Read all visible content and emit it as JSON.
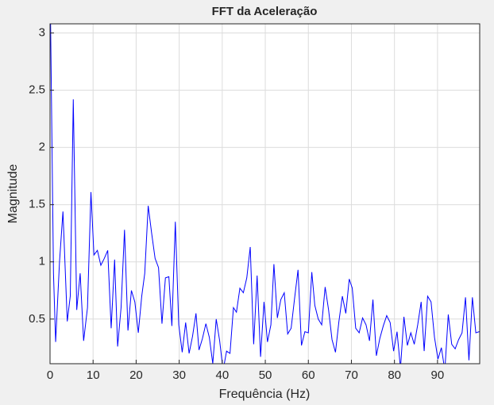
{
  "chart_data": {
    "type": "line",
    "title": "FFT da Aceleração",
    "xlabel": "Frequência (Hz)",
    "ylabel": "Magnitude",
    "x": [
      0,
      0.8,
      1.3,
      2.2,
      3,
      4,
      4.7,
      5.4,
      6.2,
      7,
      7.8,
      8.7,
      9.5,
      10.2,
      11,
      11.8,
      12.6,
      13.4,
      14.2,
      15,
      15.7,
      16.5,
      17.3,
      18.1,
      18.9,
      19.7,
      20.5,
      21.3,
      22,
      22.8,
      23.6,
      24.4,
      25.2,
      26,
      26.8,
      27.6,
      28.3,
      29.1,
      29.9,
      30.7,
      31.5,
      32.3,
      33.1,
      33.9,
      34.6,
      35.4,
      36.2,
      37,
      37.8,
      38.6,
      39.4,
      40.2,
      41,
      41.8,
      42.6,
      43.3,
      44.1,
      44.9,
      45.7,
      46.5,
      47.3,
      48.1,
      48.9,
      49.7,
      50.5,
      51.3,
      52,
      52.8,
      53.6,
      54.4,
      55.2,
      56,
      56.8,
      57.6,
      58.4,
      59.2,
      60,
      60.8,
      61.5,
      62.3,
      63.1,
      63.9,
      64.7,
      65.5,
      66.3,
      67.1,
      67.9,
      68.7,
      69.5,
      70.2,
      71,
      71.8,
      72.6,
      73.4,
      74.2,
      75,
      75.8,
      76.6,
      77.4,
      78.2,
      79,
      79.8,
      80.6,
      81.4,
      82.2,
      83,
      83.8,
      84.6,
      85.4,
      86.2,
      86.9,
      87.7,
      88.5,
      89.3,
      90.1,
      90.9,
      91.7,
      92.5,
      93.3,
      94.1,
      94.9,
      95.7,
      96.5,
      97.3,
      98.1,
      98.9,
      99.7
    ],
    "series": [
      {
        "color": "#0000ff",
        "values": [
          3.5,
          0.9,
          0.3,
          1.0,
          1.44,
          0.48,
          0.7,
          2.42,
          0.58,
          0.9,
          0.31,
          0.6,
          1.61,
          1.06,
          1.1,
          0.97,
          1.03,
          1.1,
          0.42,
          1.02,
          0.26,
          0.6,
          1.28,
          0.4,
          0.75,
          0.65,
          0.38,
          0.7,
          0.9,
          1.49,
          1.25,
          1.03,
          0.95,
          0.46,
          0.86,
          0.87,
          0.44,
          1.35,
          0.45,
          0.21,
          0.47,
          0.2,
          0.35,
          0.55,
          0.23,
          0.33,
          0.46,
          0.34,
          0.11,
          0.5,
          0.31,
          0.05,
          0.22,
          0.2,
          0.6,
          0.56,
          0.77,
          0.73,
          0.86,
          1.13,
          0.28,
          0.88,
          0.17,
          0.65,
          0.3,
          0.45,
          0.98,
          0.51,
          0.67,
          0.73,
          0.37,
          0.42,
          0.68,
          0.93,
          0.27,
          0.39,
          0.38,
          0.91,
          0.62,
          0.5,
          0.45,
          0.78,
          0.58,
          0.32,
          0.21,
          0.48,
          0.7,
          0.55,
          0.85,
          0.77,
          0.42,
          0.38,
          0.51,
          0.45,
          0.31,
          0.67,
          0.18,
          0.33,
          0.44,
          0.53,
          0.47,
          0.22,
          0.39,
          0.07,
          0.52,
          0.27,
          0.38,
          0.28,
          0.45,
          0.65,
          0.22,
          0.7,
          0.65,
          0.34,
          0.15,
          0.25,
          0.05,
          0.54,
          0.28,
          0.24,
          0.32,
          0.38,
          0.69,
          0.14,
          0.69,
          0.38,
          0.39
        ]
      }
    ],
    "xlim": [
      0,
      99.8
    ],
    "ylim": [
      0.11,
      3.08
    ],
    "xticks": [
      0,
      10,
      20,
      30,
      40,
      50,
      60,
      70,
      80,
      90
    ],
    "yticks": [
      0.5,
      1,
      1.5,
      2,
      2.5,
      3
    ],
    "grid": true
  }
}
